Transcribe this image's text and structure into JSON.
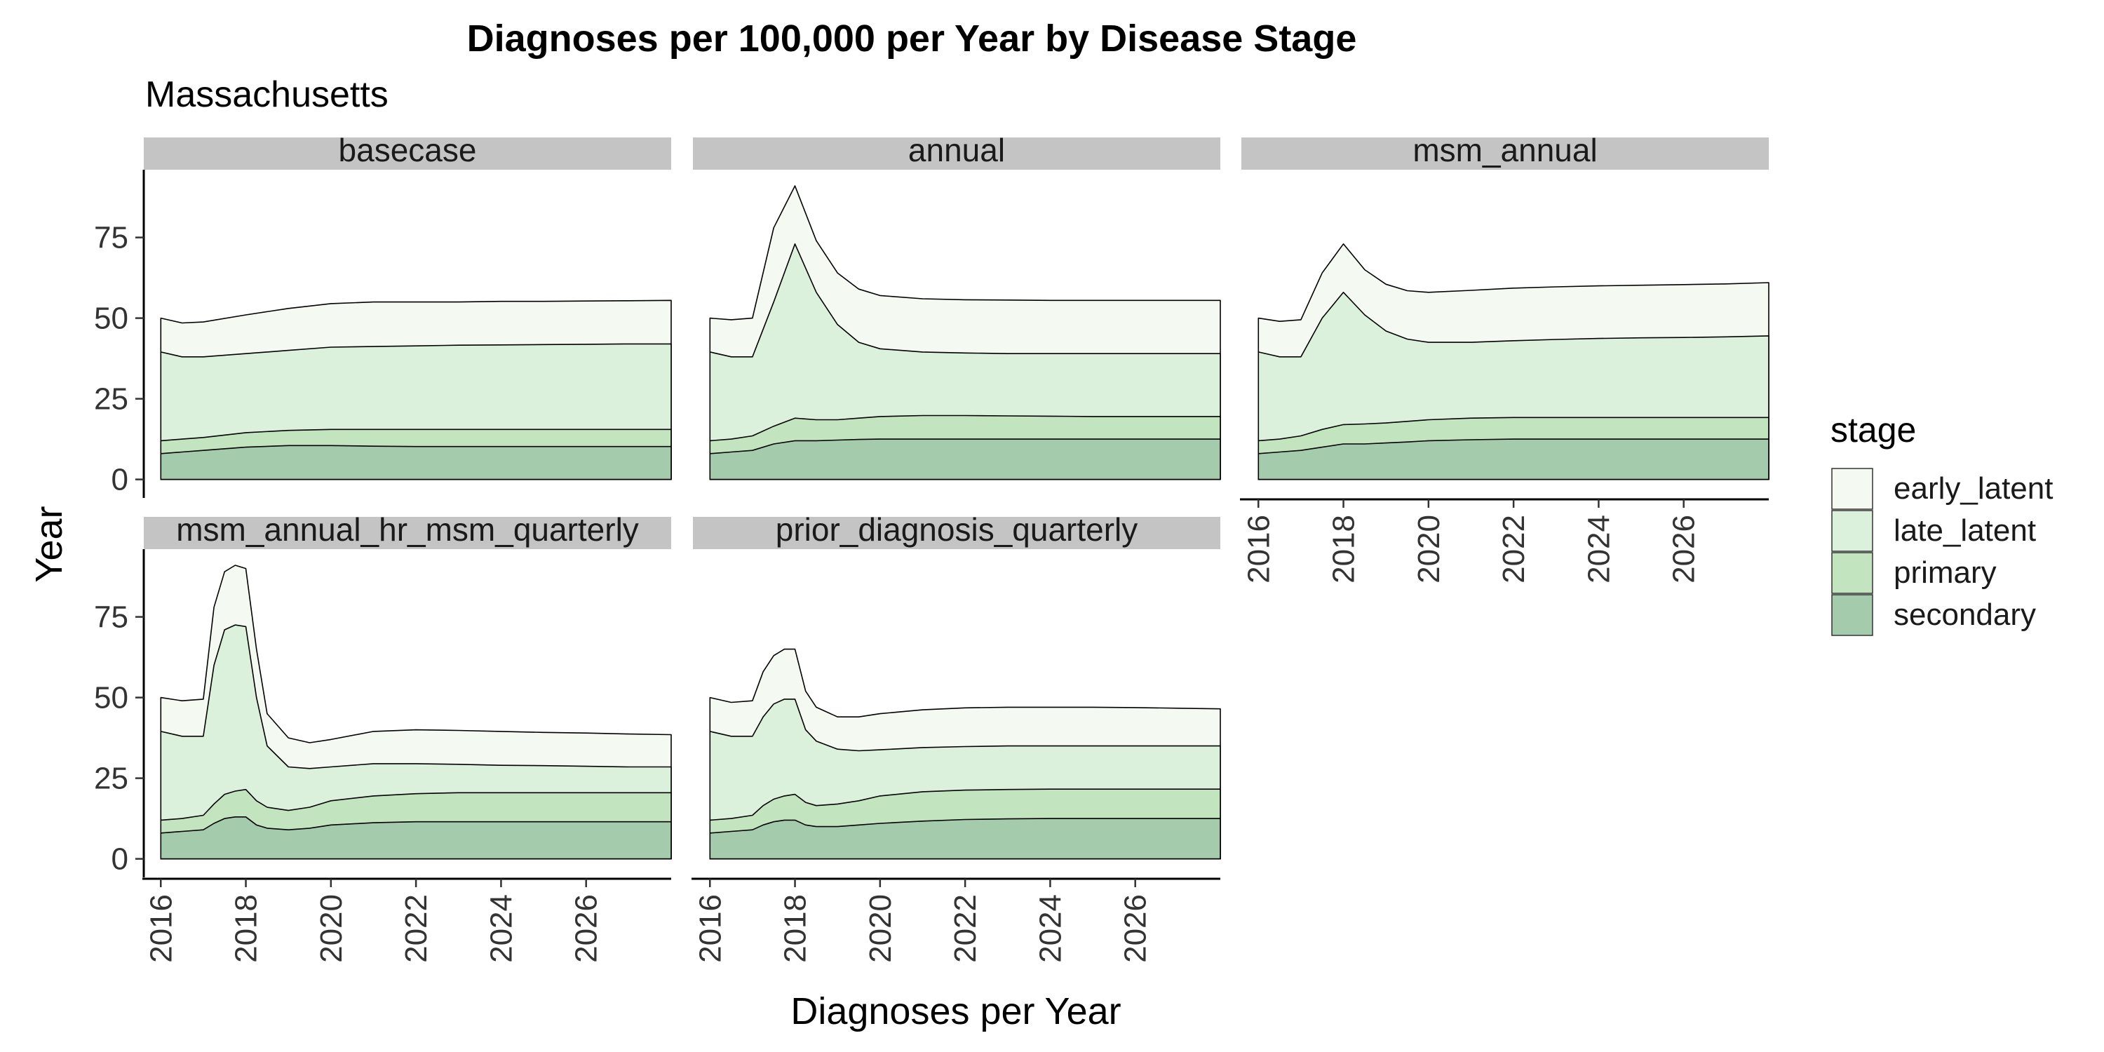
{
  "chart_data": {
    "type": "area",
    "stacked": true,
    "title": "Diagnoses per 100,000 per Year by Disease Stage",
    "subtitle": "Massachusetts",
    "xlabel": "Diagnoses per Year",
    "ylabel": "Year",
    "xlim": [
      2015.6,
      2028.0
    ],
    "ylim": [
      -4,
      96
    ],
    "x_ticks": [
      "2016",
      "2018",
      "2020",
      "2022",
      "2024",
      "2026"
    ],
    "y_ticks": [
      "0",
      "25",
      "50",
      "75"
    ],
    "legend": {
      "title": "stage",
      "position": "right",
      "entries": [
        "early_latent",
        "late_latent",
        "primary",
        "secondary"
      ]
    },
    "colors": {
      "early_latent": "#f4faf2",
      "late_latent": "#dcf1db",
      "primary": "#c2e5c0",
      "secondary": "#a5cbad",
      "strip": "#c4c4c4",
      "line": "#000000"
    },
    "stack_order_bottom_to_top": [
      "secondary",
      "primary",
      "late_latent",
      "early_latent"
    ],
    "panels": [
      {
        "name": "basecase",
        "x": [
          2016,
          2016.5,
          2017,
          2018,
          2019,
          2020,
          2021,
          2022,
          2023,
          2024,
          2025,
          2026,
          2027,
          2028
        ],
        "cumulative": {
          "secondary": [
            8,
            8.5,
            9,
            10,
            10.5,
            10.5,
            10.3,
            10.2,
            10.2,
            10.2,
            10.2,
            10.2,
            10.2,
            10.2
          ],
          "primary": [
            12,
            12.5,
            13,
            14.5,
            15.2,
            15.5,
            15.5,
            15.5,
            15.5,
            15.5,
            15.5,
            15.5,
            15.5,
            15.5
          ],
          "late_latent": [
            39.5,
            38,
            38,
            39,
            40,
            41,
            41.2,
            41.4,
            41.6,
            41.7,
            41.8,
            41.9,
            42,
            42
          ],
          "early_latent": [
            50,
            48.5,
            48.8,
            51,
            53,
            54.5,
            55,
            55,
            55,
            55.2,
            55.2,
            55.3,
            55.4,
            55.5
          ]
        }
      },
      {
        "name": "annual",
        "x": [
          2016,
          2016.5,
          2017,
          2017.5,
          2018,
          2018.5,
          2019,
          2019.5,
          2020,
          2021,
          2022,
          2023,
          2024,
          2025,
          2026,
          2027,
          2028
        ],
        "cumulative": {
          "secondary": [
            8,
            8.5,
            9,
            11,
            12,
            12,
            12.2,
            12.4,
            12.5,
            12.5,
            12.5,
            12.5,
            12.5,
            12.5,
            12.5,
            12.5,
            12.5
          ],
          "primary": [
            12,
            12.5,
            13.5,
            16.5,
            19,
            18.5,
            18.5,
            19,
            19.5,
            19.8,
            19.8,
            19.7,
            19.6,
            19.5,
            19.5,
            19.5,
            19.5
          ],
          "late_latent": [
            39.5,
            38,
            38,
            55,
            73,
            58,
            48,
            42.5,
            40.5,
            39.5,
            39.2,
            39,
            39,
            39,
            39,
            39,
            39
          ],
          "early_latent": [
            50,
            49.5,
            50,
            78,
            91,
            74,
            64,
            59,
            57,
            56,
            55.7,
            55.6,
            55.5,
            55.5,
            55.5,
            55.5,
            55.5
          ]
        }
      },
      {
        "name": "msm_annual",
        "x": [
          2016,
          2016.5,
          2017,
          2017.5,
          2018,
          2018.5,
          2019,
          2019.5,
          2020,
          2021,
          2022,
          2023,
          2024,
          2025,
          2026,
          2027,
          2028
        ],
        "cumulative": {
          "secondary": [
            8,
            8.5,
            9,
            10,
            11,
            11,
            11.3,
            11.6,
            12,
            12.3,
            12.5,
            12.5,
            12.5,
            12.5,
            12.5,
            12.5,
            12.5
          ],
          "primary": [
            12,
            12.5,
            13.5,
            15.5,
            17,
            17.2,
            17.5,
            18,
            18.5,
            19,
            19.2,
            19.2,
            19.2,
            19.2,
            19.2,
            19.2,
            19.2
          ],
          "late_latent": [
            39.5,
            38,
            38,
            50,
            58,
            51,
            46,
            43.5,
            42.5,
            42.5,
            43,
            43.4,
            43.7,
            43.9,
            44,
            44.2,
            44.5
          ],
          "early_latent": [
            50,
            49,
            49.5,
            64,
            73,
            65,
            60.5,
            58.5,
            58,
            58.6,
            59.3,
            59.7,
            60,
            60.2,
            60.4,
            60.6,
            61
          ]
        }
      },
      {
        "name": "msm_annual_hr_msm_quarterly",
        "x": [
          2016,
          2016.5,
          2017,
          2017.25,
          2017.5,
          2017.75,
          2018,
          2018.25,
          2018.5,
          2019,
          2019.5,
          2020,
          2021,
          2022,
          2023,
          2024,
          2025,
          2026,
          2027,
          2028
        ],
        "cumulative": {
          "secondary": [
            8,
            8.5,
            9,
            11,
            12.5,
            13,
            13,
            10.5,
            9.5,
            9,
            9.5,
            10.5,
            11.2,
            11.5,
            11.5,
            11.5,
            11.5,
            11.5,
            11.5,
            11.5
          ],
          "primary": [
            12,
            12.5,
            13.5,
            17,
            20,
            21,
            21.5,
            18,
            16,
            15,
            16,
            18,
            19.5,
            20.2,
            20.5,
            20.5,
            20.5,
            20.5,
            20.5,
            20.5
          ],
          "late_latent": [
            39.5,
            38,
            38,
            60,
            71,
            72.5,
            72,
            50,
            35,
            28.5,
            28,
            28.5,
            29.5,
            29.5,
            29.3,
            29,
            28.9,
            28.7,
            28.5,
            28.5
          ],
          "early_latent": [
            50,
            49,
            49.5,
            78,
            89,
            91,
            90,
            65,
            45,
            37.5,
            36,
            37,
            39.5,
            40,
            39.8,
            39.5,
            39.2,
            39,
            38.7,
            38.5
          ]
        }
      },
      {
        "name": "prior_diagnosis_quarterly",
        "x": [
          2016,
          2016.5,
          2017,
          2017.25,
          2017.5,
          2017.75,
          2018,
          2018.25,
          2018.5,
          2019,
          2019.5,
          2020,
          2021,
          2022,
          2023,
          2024,
          2025,
          2026,
          2027,
          2028
        ],
        "cumulative": {
          "secondary": [
            8,
            8.5,
            9,
            10.5,
            11.5,
            12,
            12,
            10.5,
            10,
            10,
            10.5,
            11,
            11.7,
            12.2,
            12.4,
            12.5,
            12.5,
            12.5,
            12.5,
            12.5
          ],
          "primary": [
            12,
            12.5,
            13.5,
            16.5,
            18.5,
            19.5,
            20,
            17.5,
            16.5,
            17,
            18,
            19.5,
            20.8,
            21.3,
            21.5,
            21.6,
            21.6,
            21.6,
            21.6,
            21.6
          ],
          "late_latent": [
            39.5,
            38,
            38,
            44,
            48,
            49.5,
            49.5,
            40,
            36.5,
            34,
            33.5,
            33.8,
            34.5,
            34.8,
            35,
            35,
            35,
            35,
            35,
            35
          ],
          "early_latent": [
            50,
            48.5,
            49,
            58,
            63,
            65,
            65,
            52,
            47,
            44,
            44,
            45,
            46.2,
            46.8,
            47,
            47,
            47,
            46.9,
            46.7,
            46.5
          ]
        }
      }
    ]
  }
}
